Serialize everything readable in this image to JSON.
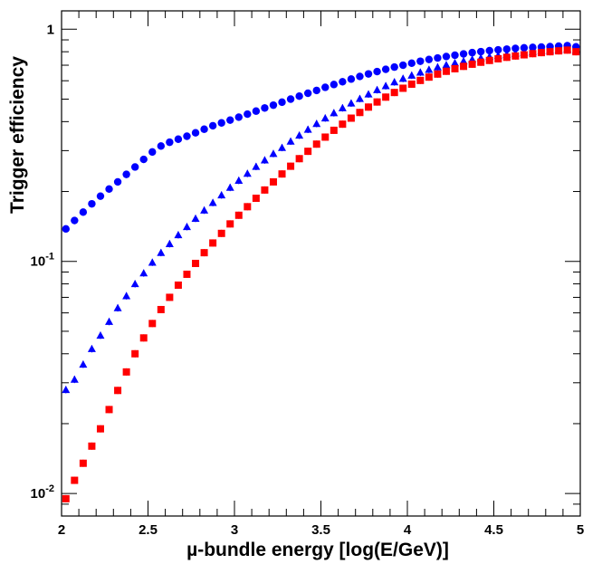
{
  "chart_data": {
    "type": "scatter",
    "title": "",
    "xlabel": "µ-bundle energy  [log(E/GeV)]",
    "ylabel": "Trigger efficiency",
    "xlim": [
      2,
      5
    ],
    "ylim": [
      0.008,
      1.2
    ],
    "yscale": "log",
    "grid": false,
    "x_ticks": [
      {
        "value": 2,
        "label": "2"
      },
      {
        "value": 2.5,
        "label": "2.5"
      },
      {
        "value": 3,
        "label": "3"
      },
      {
        "value": 3.5,
        "label": "3.5"
      },
      {
        "value": 4,
        "label": "4"
      },
      {
        "value": 4.5,
        "label": "4.5"
      },
      {
        "value": 5,
        "label": "5"
      }
    ],
    "y_ticks": [
      {
        "value": 1,
        "base": "1",
        "exp": ""
      },
      {
        "value": 0.1,
        "base": "10",
        "exp": "-1"
      },
      {
        "value": 0.01,
        "base": "10",
        "exp": "-2"
      }
    ],
    "series": [
      {
        "marker": "circle",
        "color": "#0000ff",
        "x": [
          2.025,
          2.075,
          2.125,
          2.175,
          2.225,
          2.275,
          2.325,
          2.375,
          2.425,
          2.475,
          2.525,
          2.575,
          2.625,
          2.675,
          2.725,
          2.775,
          2.825,
          2.875,
          2.925,
          2.975,
          3.025,
          3.075,
          3.125,
          3.175,
          3.225,
          3.275,
          3.325,
          3.375,
          3.425,
          3.475,
          3.525,
          3.575,
          3.625,
          3.675,
          3.725,
          3.775,
          3.825,
          3.875,
          3.925,
          3.975,
          4.025,
          4.075,
          4.125,
          4.175,
          4.225,
          4.275,
          4.325,
          4.375,
          4.425,
          4.475,
          4.525,
          4.575,
          4.625,
          4.675,
          4.725,
          4.775,
          4.825,
          4.875,
          4.925,
          4.975
        ],
        "y": [
          0.138,
          0.15,
          0.163,
          0.177,
          0.191,
          0.205,
          0.22,
          0.237,
          0.255,
          0.275,
          0.296,
          0.314,
          0.326,
          0.336,
          0.346,
          0.358,
          0.371,
          0.384,
          0.395,
          0.406,
          0.418,
          0.431,
          0.444,
          0.458,
          0.471,
          0.485,
          0.5,
          0.515,
          0.53,
          0.545,
          0.562,
          0.578,
          0.594,
          0.61,
          0.626,
          0.642,
          0.657,
          0.672,
          0.687,
          0.7,
          0.714,
          0.728,
          0.741,
          0.752,
          0.763,
          0.773,
          0.783,
          0.793,
          0.801,
          0.809,
          0.815,
          0.821,
          0.827,
          0.832,
          0.835,
          0.838,
          0.842,
          0.846,
          0.85,
          0.84
        ]
      },
      {
        "marker": "triangle",
        "color": "#0000ff",
        "x": [
          2.025,
          2.075,
          2.125,
          2.175,
          2.225,
          2.275,
          2.325,
          2.375,
          2.425,
          2.475,
          2.525,
          2.575,
          2.625,
          2.675,
          2.725,
          2.775,
          2.825,
          2.875,
          2.925,
          2.975,
          3.025,
          3.075,
          3.125,
          3.175,
          3.225,
          3.275,
          3.325,
          3.375,
          3.425,
          3.475,
          3.525,
          3.575,
          3.625,
          3.675,
          3.725,
          3.775,
          3.825,
          3.875,
          3.925,
          3.975,
          4.025,
          4.075,
          4.125,
          4.175,
          4.225,
          4.275,
          4.325,
          4.375,
          4.425,
          4.475,
          4.525,
          4.575,
          4.625,
          4.675,
          4.725,
          4.775,
          4.825,
          4.875,
          4.925,
          4.975
        ],
        "y": [
          0.028,
          0.031,
          0.036,
          0.042,
          0.048,
          0.055,
          0.063,
          0.071,
          0.08,
          0.089,
          0.099,
          0.109,
          0.119,
          0.13,
          0.141,
          0.153,
          0.166,
          0.179,
          0.193,
          0.208,
          0.223,
          0.239,
          0.256,
          0.273,
          0.291,
          0.309,
          0.329,
          0.349,
          0.37,
          0.392,
          0.414,
          0.436,
          0.458,
          0.48,
          0.502,
          0.525,
          0.548,
          0.57,
          0.592,
          0.613,
          0.633,
          0.652,
          0.67,
          0.687,
          0.702,
          0.716,
          0.729,
          0.741,
          0.752,
          0.762,
          0.771,
          0.779,
          0.787,
          0.794,
          0.8,
          0.806,
          0.811,
          0.816,
          0.821,
          0.81
        ]
      },
      {
        "marker": "square",
        "color": "#ff0000",
        "x": [
          2.025,
          2.075,
          2.125,
          2.175,
          2.225,
          2.275,
          2.325,
          2.375,
          2.425,
          2.475,
          2.525,
          2.575,
          2.625,
          2.675,
          2.725,
          2.775,
          2.825,
          2.875,
          2.925,
          2.975,
          3.025,
          3.075,
          3.125,
          3.175,
          3.225,
          3.275,
          3.325,
          3.375,
          3.425,
          3.475,
          3.525,
          3.575,
          3.625,
          3.675,
          3.725,
          3.775,
          3.825,
          3.875,
          3.925,
          3.975,
          4.025,
          4.075,
          4.125,
          4.175,
          4.225,
          4.275,
          4.325,
          4.375,
          4.425,
          4.475,
          4.525,
          4.575,
          4.625,
          4.675,
          4.725,
          4.775,
          4.825,
          4.875,
          4.925,
          4.975
        ],
        "y": [
          0.0095,
          0.0114,
          0.0135,
          0.016,
          0.019,
          0.023,
          0.0278,
          0.0334,
          0.04,
          0.0468,
          0.054,
          0.062,
          0.07,
          0.079,
          0.088,
          0.098,
          0.109,
          0.12,
          0.132,
          0.145,
          0.158,
          0.172,
          0.187,
          0.203,
          0.22,
          0.238,
          0.257,
          0.277,
          0.298,
          0.32,
          0.343,
          0.367,
          0.39,
          0.414,
          0.438,
          0.462,
          0.486,
          0.51,
          0.534,
          0.557,
          0.58,
          0.602,
          0.622,
          0.641,
          0.659,
          0.676,
          0.692,
          0.707,
          0.721,
          0.734,
          0.746,
          0.757,
          0.767,
          0.776,
          0.785,
          0.793,
          0.8,
          0.807,
          0.813,
          0.8
        ]
      }
    ]
  }
}
